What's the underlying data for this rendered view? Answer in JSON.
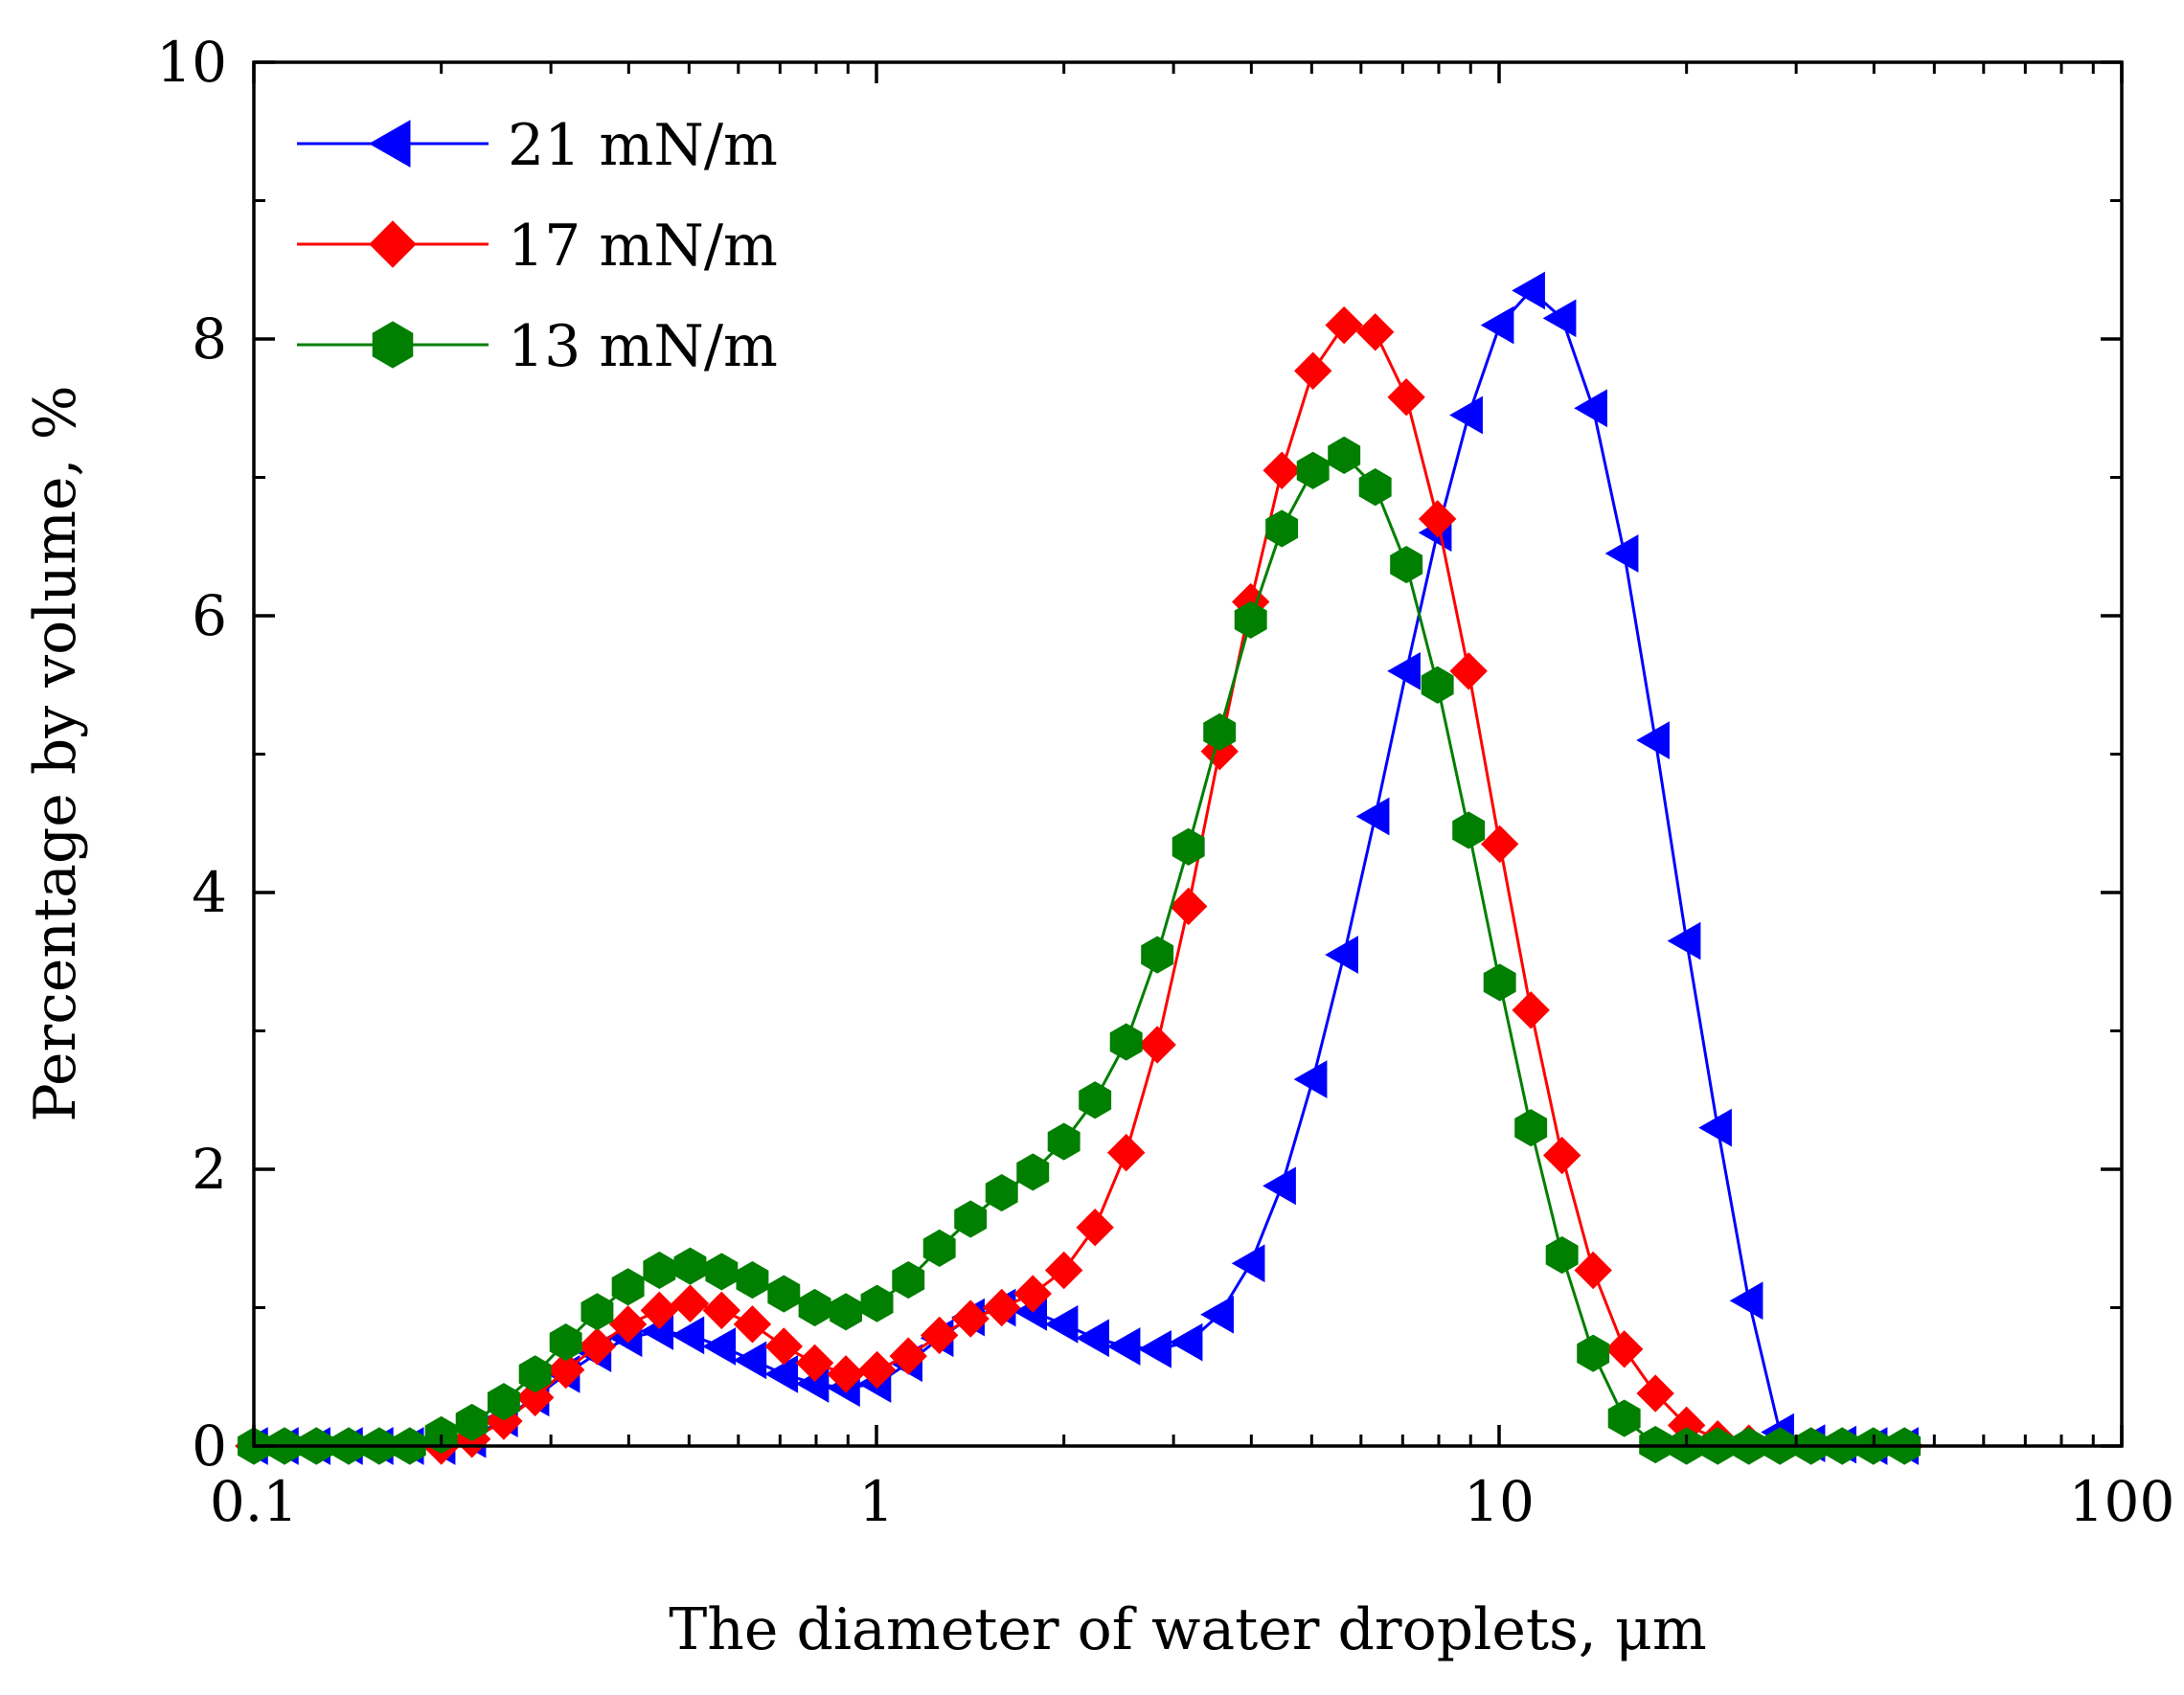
{
  "chart_data": {
    "type": "line",
    "xlabel": "The diameter of water droplets, μm",
    "ylabel": "Percentage by volume, %",
    "xscale": "log",
    "xlim": [
      0.1,
      100
    ],
    "ylim": [
      0,
      10
    ],
    "xticks": [
      0.1,
      1,
      10,
      100
    ],
    "xtick_labels": [
      "0.1",
      "1",
      "10",
      "100"
    ],
    "yticks": [
      0,
      2,
      4,
      6,
      8,
      10
    ],
    "ytick_labels": [
      "0",
      "2",
      "4",
      "6",
      "8",
      "10"
    ],
    "grid": false,
    "legend_position": "top-left",
    "x": [
      0.1,
      0.112,
      0.126,
      0.142,
      0.159,
      0.178,
      0.2,
      0.224,
      0.252,
      0.283,
      0.317,
      0.356,
      0.399,
      0.448,
      0.502,
      0.564,
      0.632,
      0.71,
      0.796,
      0.893,
      1.002,
      1.125,
      1.262,
      1.416,
      1.589,
      1.783,
      2.0,
      2.244,
      2.518,
      2.825,
      3.17,
      3.557,
      3.991,
      4.477,
      5.024,
      5.637,
      6.325,
      7.096,
      7.962,
      8.934,
      10.024,
      11.247,
      12.619,
      14.159,
      15.887,
      17.825,
      20.0,
      22.44,
      25.179,
      28.251,
      31.698,
      35.566,
      39.905,
      44.774
    ],
    "series": [
      {
        "name": "21 mN/m",
        "color": "#0000ff",
        "marker": "triangle-left",
        "values": [
          0,
          0,
          0,
          0,
          0,
          0,
          0,
          0.05,
          0.2,
          0.35,
          0.52,
          0.67,
          0.78,
          0.83,
          0.8,
          0.72,
          0.62,
          0.52,
          0.45,
          0.42,
          0.45,
          0.6,
          0.78,
          0.93,
          1.0,
          0.97,
          0.88,
          0.78,
          0.72,
          0.7,
          0.75,
          0.95,
          1.32,
          1.88,
          2.65,
          3.55,
          4.55,
          5.6,
          6.6,
          7.45,
          8.1,
          8.35,
          8.15,
          7.5,
          6.45,
          5.1,
          3.65,
          2.3,
          1.05,
          0.1,
          0.02,
          0.01,
          0,
          0
        ]
      },
      {
        "name": "17 mN/m",
        "color": "#ff0000",
        "marker": "diamond",
        "values": [
          0,
          0,
          0,
          0,
          0,
          0,
          0,
          0.05,
          0.18,
          0.35,
          0.55,
          0.72,
          0.88,
          0.98,
          1.03,
          0.98,
          0.88,
          0.72,
          0.6,
          0.52,
          0.55,
          0.65,
          0.8,
          0.92,
          1.0,
          1.1,
          1.27,
          1.58,
          2.12,
          2.9,
          3.9,
          5.02,
          6.1,
          7.05,
          7.77,
          8.1,
          8.05,
          7.58,
          6.7,
          5.6,
          4.35,
          3.15,
          2.1,
          1.27,
          0.7,
          0.38,
          0.15,
          0.05,
          0.02,
          0,
          0,
          0,
          0,
          0
        ]
      },
      {
        "name": "13 mN/m",
        "color": "#007f00",
        "marker": "hexagon",
        "values": [
          0,
          0,
          0,
          0,
          0,
          0,
          0.08,
          0.17,
          0.32,
          0.52,
          0.75,
          0.97,
          1.15,
          1.27,
          1.3,
          1.26,
          1.2,
          1.1,
          1.0,
          0.97,
          1.03,
          1.2,
          1.43,
          1.64,
          1.83,
          1.98,
          2.2,
          2.5,
          2.92,
          3.55,
          4.33,
          5.16,
          5.97,
          6.63,
          7.05,
          7.16,
          6.93,
          6.37,
          5.5,
          4.45,
          3.35,
          2.3,
          1.38,
          0.67,
          0.2,
          0.01,
          0,
          0,
          0,
          0,
          0,
          0,
          0,
          0
        ]
      }
    ]
  }
}
